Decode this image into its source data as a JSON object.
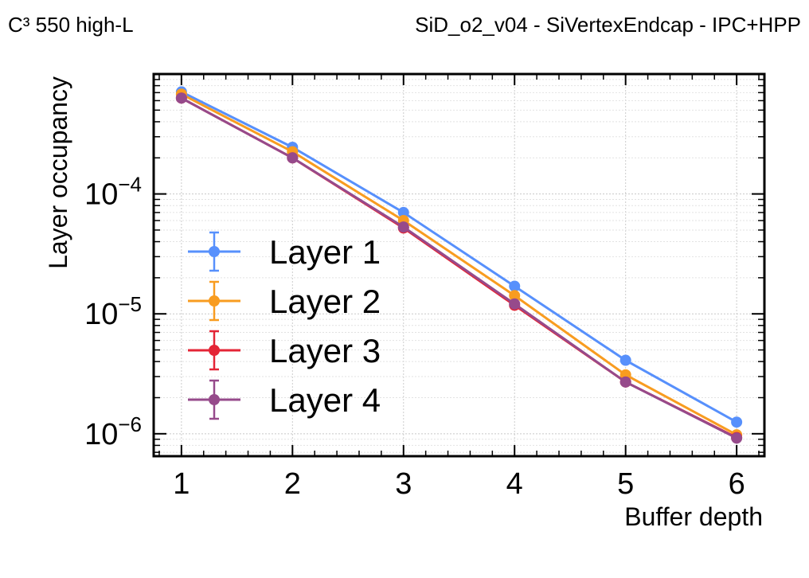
{
  "header": {
    "left": "C³ 550  high-L",
    "right": "SiD_o2_v04 - SiVertexEndcap - IPC+HPP"
  },
  "chart_data": {
    "type": "line",
    "title": "SiD_o2_v04 - SiVertexEndcap - IPC+HPP",
    "xlabel": "Buffer depth",
    "ylabel": "Layer occupancy",
    "yscale": "log",
    "xlim": [
      0.75,
      6.25
    ],
    "ylim": [
      6.5e-07,
      0.001
    ],
    "grid": true,
    "legend_position": "center-left",
    "x": [
      1,
      2,
      3,
      4,
      5,
      6
    ],
    "xticklabels": [
      "1",
      "2",
      "3",
      "4",
      "5",
      "6"
    ],
    "yticks": [
      {
        "value": 1e-06,
        "base": "10",
        "exp": "−6"
      },
      {
        "value": 1e-05,
        "base": "10",
        "exp": "−5"
      },
      {
        "value": 0.0001,
        "base": "10",
        "exp": "−4"
      }
    ],
    "series": [
      {
        "name": "Layer 1",
        "color": "#5790fc",
        "values": [
          0.00071,
          0.000245,
          7e-05,
          1.7e-05,
          4.1e-06,
          1.25e-06
        ]
      },
      {
        "name": "Layer 2",
        "color": "#f89c20",
        "values": [
          0.00068,
          0.000225,
          6e-05,
          1.42e-05,
          3.1e-06,
          9.8e-07
        ]
      },
      {
        "name": "Layer 3",
        "color": "#e42536",
        "values": [
          0.00063,
          0.0002,
          5.2e-05,
          1.18e-05,
          2.7e-06,
          9.3e-07
        ]
      },
      {
        "name": "Layer 4",
        "color": "#964a8b",
        "values": [
          0.00063,
          0.0002,
          5.3e-05,
          1.21e-05,
          2.7e-06,
          9.2e-07
        ]
      }
    ]
  }
}
